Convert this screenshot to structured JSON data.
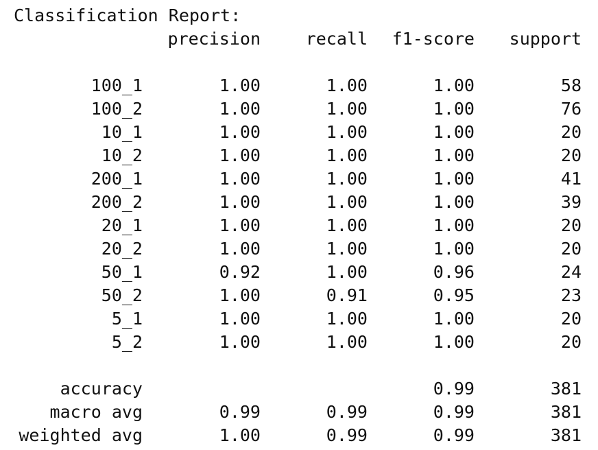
{
  "title": "Classification Report:",
  "headers": {
    "precision": "precision",
    "recall": "recall",
    "f1": "f1-score",
    "support": "support"
  },
  "rows": [
    {
      "label": "100_1",
      "precision": "1.00",
      "recall": "1.00",
      "f1": "1.00",
      "support": "58"
    },
    {
      "label": "100_2",
      "precision": "1.00",
      "recall": "1.00",
      "f1": "1.00",
      "support": "76"
    },
    {
      "label": "10_1",
      "precision": "1.00",
      "recall": "1.00",
      "f1": "1.00",
      "support": "20"
    },
    {
      "label": "10_2",
      "precision": "1.00",
      "recall": "1.00",
      "f1": "1.00",
      "support": "20"
    },
    {
      "label": "200_1",
      "precision": "1.00",
      "recall": "1.00",
      "f1": "1.00",
      "support": "41"
    },
    {
      "label": "200_2",
      "precision": "1.00",
      "recall": "1.00",
      "f1": "1.00",
      "support": "39"
    },
    {
      "label": "20_1",
      "precision": "1.00",
      "recall": "1.00",
      "f1": "1.00",
      "support": "20"
    },
    {
      "label": "20_2",
      "precision": "1.00",
      "recall": "1.00",
      "f1": "1.00",
      "support": "20"
    },
    {
      "label": "50_1",
      "precision": "0.92",
      "recall": "1.00",
      "f1": "0.96",
      "support": "24"
    },
    {
      "label": "50_2",
      "precision": "1.00",
      "recall": "0.91",
      "f1": "0.95",
      "support": "23"
    },
    {
      "label": "5_1",
      "precision": "1.00",
      "recall": "1.00",
      "f1": "1.00",
      "support": "20"
    },
    {
      "label": "5_2",
      "precision": "1.00",
      "recall": "1.00",
      "f1": "1.00",
      "support": "20"
    }
  ],
  "summary": {
    "accuracy": {
      "label": "accuracy",
      "precision": "",
      "recall": "",
      "f1": "0.99",
      "support": "381"
    },
    "macro_avg": {
      "label": "macro avg",
      "precision": "0.99",
      "recall": "0.99",
      "f1": "0.99",
      "support": "381"
    },
    "weighted_avg": {
      "label": "weighted avg",
      "precision": "1.00",
      "recall": "0.99",
      "f1": "0.99",
      "support": "381"
    }
  }
}
